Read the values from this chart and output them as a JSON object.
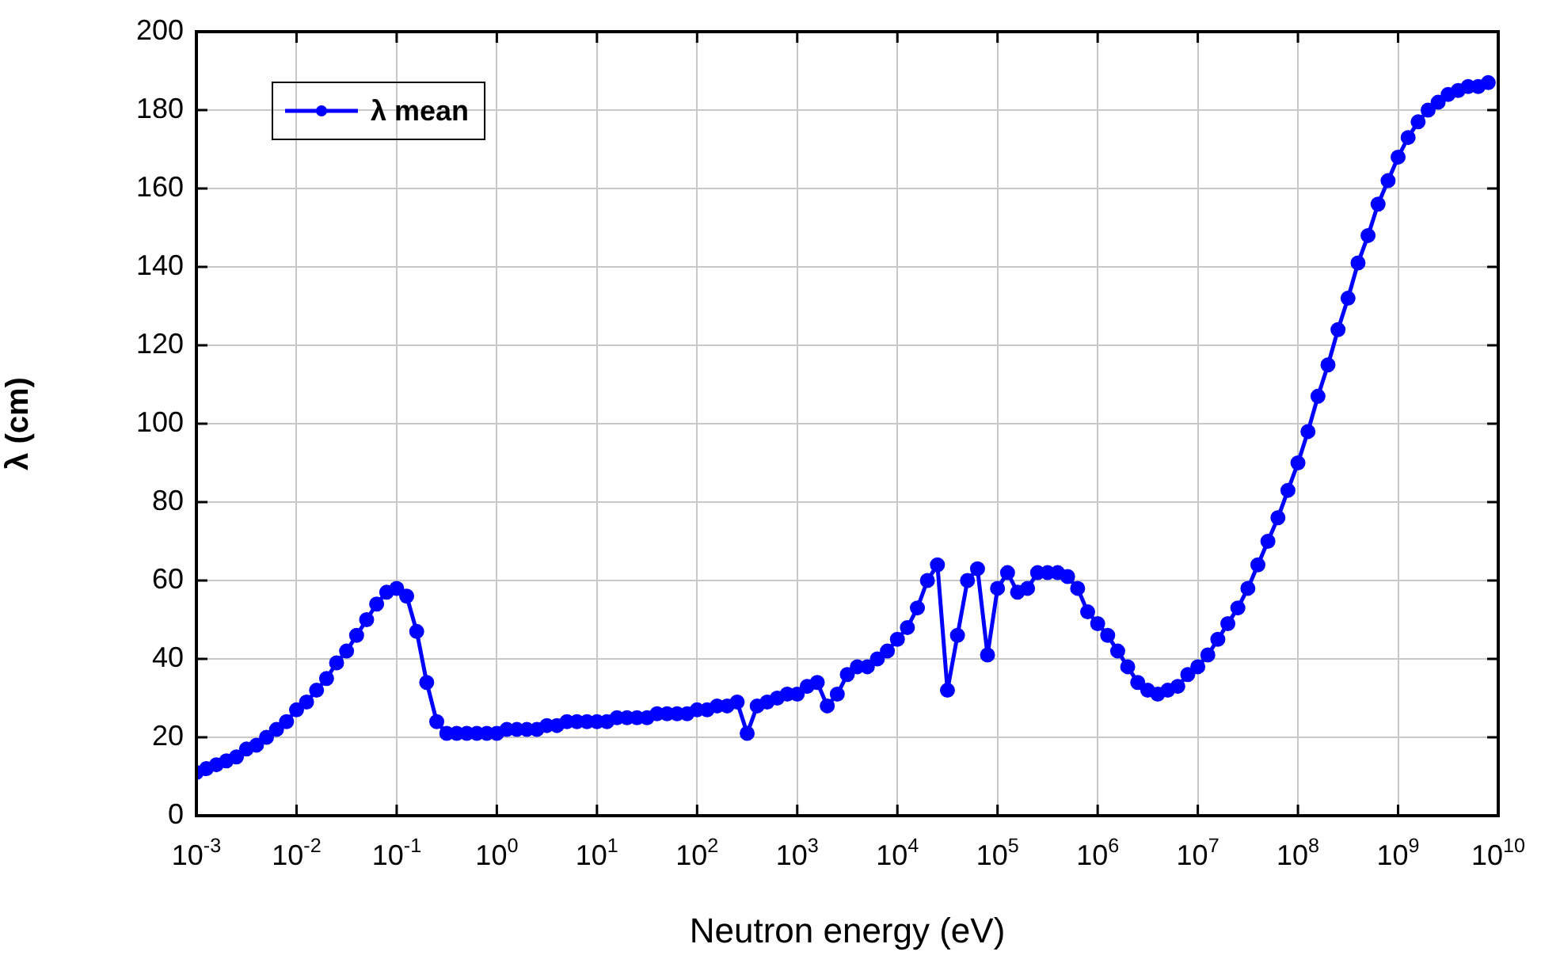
{
  "chart_data": {
    "type": "line",
    "xlabel": "Neutron energy (eV)",
    "ylabel": "λ (cm)",
    "log": "x",
    "grid": true,
    "legend": "top left",
    "marker": "circle",
    "line_style": "solid",
    "xlim": [
      0.001,
      10000000000
    ],
    "ylim": [
      0,
      200
    ],
    "xticks": [
      {
        "value": 0.001,
        "label": "10$^{-3}$"
      },
      {
        "value": 0.01,
        "label": "10$^{-2}$"
      },
      {
        "value": 0.1,
        "label": "10$^{-1}$"
      },
      {
        "value": 1,
        "label": "10$^{0}$"
      },
      {
        "value": 10,
        "label": "10$^{1}$"
      },
      {
        "value": 100,
        "label": "10$^{2}$"
      },
      {
        "value": 1000,
        "label": "10$^{3}$"
      },
      {
        "value": 10000,
        "label": "10$^{4}$"
      },
      {
        "value": 100000,
        "label": "10$^{5}$"
      },
      {
        "value": 1000000,
        "label": "10$^{6}$"
      },
      {
        "value": 10000000,
        "label": "10$^{7}$"
      },
      {
        "value": 100000000,
        "label": "10$^{8}$"
      },
      {
        "value": 1000000000,
        "label": "10$^{9}$"
      },
      {
        "value": 10000000000,
        "label": "10$^{10}$"
      }
    ],
    "yticks": [
      0,
      20,
      40,
      60,
      80,
      100,
      120,
      140,
      160,
      180,
      200
    ],
    "x": [
      0.001,
      0.001259,
      0.001585,
      0.001995,
      0.002512,
      0.003162,
      0.003981,
      0.005012,
      0.00631,
      0.007943,
      0.01,
      0.01259,
      0.01585,
      0.01995,
      0.02512,
      0.03162,
      0.03981,
      0.05012,
      0.0631,
      0.07943,
      0.1,
      0.1259,
      0.1585,
      0.1995,
      0.2512,
      0.3162,
      0.3981,
      0.5012,
      0.631,
      0.7943,
      1,
      1.259,
      1.585,
      1.995,
      2.512,
      3.162,
      3.981,
      5.012,
      6.31,
      7.943,
      10.0,
      12.59,
      15.85,
      19.95,
      25.12,
      31.62,
      39.81,
      50.12,
      63.1,
      79.43,
      100.0,
      125.9,
      158.5,
      199.5,
      251.2,
      316.2,
      398.1,
      501.2,
      631.0,
      794.3,
      1000.0,
      1259.0,
      1585.0,
      1995.0,
      2512.0,
      3162.0,
      3981.0,
      5012.0,
      6310.0,
      7943.0,
      10000.0,
      12590.0,
      15850.0,
      19950.0,
      25120.0,
      31620.0,
      39810.0,
      50120.0,
      63100.0,
      79430.0,
      100000.0,
      125900.0,
      158500.0,
      199500.0,
      251200.0,
      316200.0,
      398100.0,
      501200.0,
      631000.0,
      794300.0,
      1000000.0,
      1259000.0,
      1585000.0,
      1995000.0,
      2512000.0,
      3162000.0,
      3981000.0,
      5012000.0,
      6310000.0,
      7943000.0,
      10000000.0,
      12590000.0,
      15850000.0,
      19950000.0,
      25120000.0,
      31620000.0,
      39810000.0,
      50120000.0,
      63100000.0,
      79430000.0,
      100000000.0,
      125900000.0,
      158500000.0,
      199500000.0,
      251200000.0,
      316200000.0,
      398100000.0,
      501200000.0,
      631000000.0,
      794300000.0,
      1000000000.0,
      1259000000.0,
      1585000000.0,
      1995000000.0,
      2512000000.0,
      3162000000.0,
      3981000000.0,
      5012000000.0,
      6310000000.0,
      7943000000.0
    ],
    "series": [
      {
        "name": "λ mean",
        "color": "#0000ff",
        "values": [
          11,
          12,
          13,
          14,
          15,
          17,
          18,
          20,
          22,
          24,
          27,
          29,
          32,
          35,
          39,
          42,
          46,
          50,
          54,
          57,
          58,
          56,
          47,
          34,
          24,
          21,
          21,
          21,
          21,
          21,
          21,
          22,
          22,
          22,
          22,
          23,
          23,
          24,
          24,
          24,
          24,
          24,
          25,
          25,
          25,
          25,
          26,
          26,
          26,
          26,
          27,
          27,
          28,
          28,
          29,
          21,
          28,
          29,
          30,
          31,
          31,
          33,
          34,
          28,
          31,
          36,
          38,
          38,
          40,
          42,
          45,
          48,
          53,
          60,
          64,
          32,
          46,
          60,
          63,
          41,
          58,
          62,
          57,
          58,
          62,
          62,
          62,
          61,
          58,
          52,
          49,
          46,
          42,
          38,
          34,
          32,
          31,
          32,
          33,
          36,
          38,
          41,
          45,
          49,
          53,
          58,
          64,
          70,
          76,
          83,
          90,
          98,
          107,
          115,
          124,
          132,
          141,
          148,
          156,
          162,
          168,
          173,
          177,
          180,
          182,
          184,
          185,
          186,
          186,
          187
        ]
      }
    ]
  }
}
